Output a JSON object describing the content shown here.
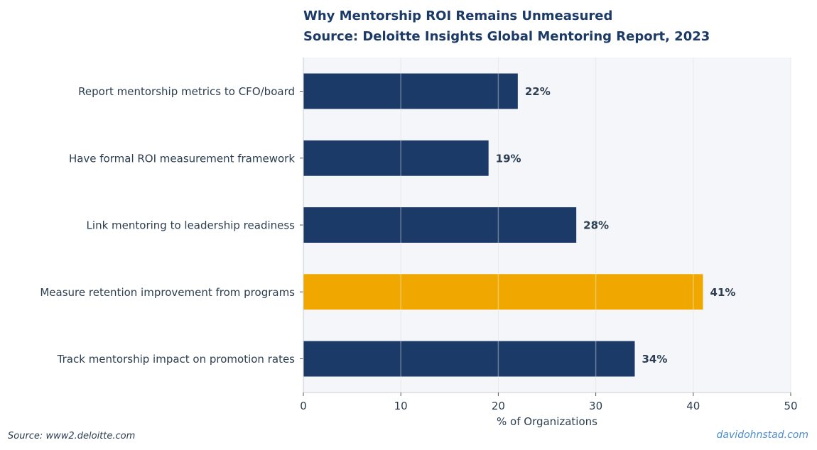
{
  "chart_data": {
    "type": "bar",
    "orientation": "horizontal",
    "title": "Why Mentorship ROI Remains Unmeasured",
    "subtitle": "Source: Deloitte Insights Global Mentoring Report, 2023",
    "xlabel": "% of Organizations",
    "ylabel": "",
    "xlim": [
      0,
      50
    ],
    "xticks": [
      0,
      10,
      20,
      30,
      40,
      50
    ],
    "grid": "vertical",
    "categories": [
      "Report mentorship metrics to CFO/board",
      "Have formal ROI measurement framework",
      "Link mentoring to leadership readiness",
      "Measure retention improvement from programs",
      "Track mentorship impact on promotion rates"
    ],
    "values": [
      22,
      19,
      28,
      41,
      34
    ],
    "value_labels": [
      "22%",
      "19%",
      "28%",
      "41%",
      "34%"
    ],
    "highlight_index": 3,
    "colors": {
      "bar": "#1b3a67",
      "highlight": "#f0a800",
      "plot_background": "#f4f6f9",
      "grid": "#d9dde3",
      "text": "#2c3e50",
      "title": "#1b3a67"
    }
  },
  "footer": {
    "source": "Source: www2.deloitte.com",
    "credit": "davidohnstad.com"
  }
}
